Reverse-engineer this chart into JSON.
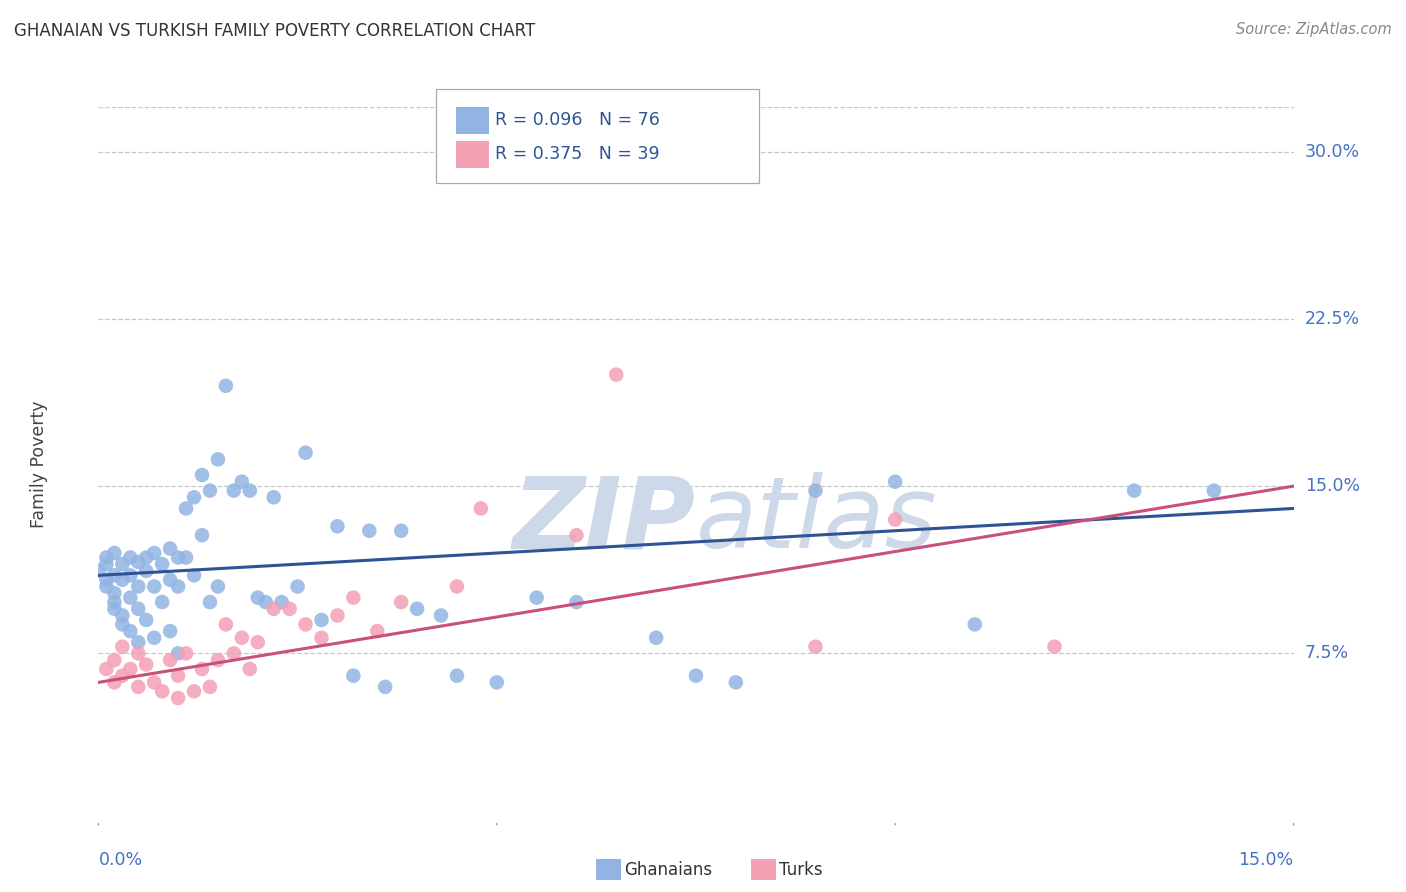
{
  "title": "GHANAIAN VS TURKISH FAMILY POVERTY CORRELATION CHART",
  "source": "Source: ZipAtlas.com",
  "ylabel": "Family Poverty",
  "ytick_labels": [
    "7.5%",
    "15.0%",
    "22.5%",
    "30.0%"
  ],
  "ytick_values": [
    0.075,
    0.15,
    0.225,
    0.3
  ],
  "xlim": [
    0.0,
    0.15
  ],
  "ylim": [
    0.0,
    0.32
  ],
  "ghanaian_color": "#92b4e3",
  "turkish_color": "#f4a0b5",
  "ghanaian_line_color": "#2f5496",
  "turkish_line_color": "#c9507a",
  "legend_text_color": "#2f5496",
  "axis_label_color": "#4472c4",
  "background_color": "#ffffff",
  "watermark_color": "#cdd8e8",
  "R_ghanaian": 0.096,
  "N_ghanaian": 76,
  "R_turkish": 0.375,
  "N_turkish": 39,
  "ghanaians_x": [
    0.0,
    0.001,
    0.001,
    0.001,
    0.001,
    0.002,
    0.002,
    0.002,
    0.002,
    0.002,
    0.003,
    0.003,
    0.003,
    0.003,
    0.004,
    0.004,
    0.004,
    0.004,
    0.005,
    0.005,
    0.005,
    0.005,
    0.006,
    0.006,
    0.006,
    0.007,
    0.007,
    0.007,
    0.008,
    0.008,
    0.009,
    0.009,
    0.009,
    0.01,
    0.01,
    0.01,
    0.011,
    0.011,
    0.012,
    0.012,
    0.013,
    0.013,
    0.014,
    0.014,
    0.015,
    0.015,
    0.016,
    0.017,
    0.018,
    0.019,
    0.02,
    0.021,
    0.022,
    0.023,
    0.025,
    0.026,
    0.028,
    0.03,
    0.032,
    0.034,
    0.036,
    0.038,
    0.04,
    0.043,
    0.045,
    0.05,
    0.055,
    0.06,
    0.07,
    0.075,
    0.08,
    0.09,
    0.1,
    0.11,
    0.13,
    0.14
  ],
  "ghanaians_y": [
    0.112,
    0.115,
    0.108,
    0.105,
    0.118,
    0.11,
    0.102,
    0.095,
    0.12,
    0.098,
    0.115,
    0.108,
    0.092,
    0.088,
    0.118,
    0.11,
    0.1,
    0.085,
    0.116,
    0.105,
    0.095,
    0.08,
    0.118,
    0.112,
    0.09,
    0.12,
    0.105,
    0.082,
    0.115,
    0.098,
    0.122,
    0.108,
    0.085,
    0.118,
    0.105,
    0.075,
    0.14,
    0.118,
    0.145,
    0.11,
    0.155,
    0.128,
    0.148,
    0.098,
    0.162,
    0.105,
    0.195,
    0.148,
    0.152,
    0.148,
    0.1,
    0.098,
    0.145,
    0.098,
    0.105,
    0.165,
    0.09,
    0.132,
    0.065,
    0.13,
    0.06,
    0.13,
    0.095,
    0.092,
    0.065,
    0.062,
    0.1,
    0.098,
    0.082,
    0.065,
    0.062,
    0.148,
    0.152,
    0.088,
    0.148,
    0.148
  ],
  "turks_x": [
    0.001,
    0.002,
    0.002,
    0.003,
    0.003,
    0.004,
    0.005,
    0.005,
    0.006,
    0.007,
    0.008,
    0.009,
    0.01,
    0.01,
    0.011,
    0.012,
    0.013,
    0.014,
    0.015,
    0.016,
    0.017,
    0.018,
    0.019,
    0.02,
    0.022,
    0.024,
    0.026,
    0.028,
    0.03,
    0.032,
    0.035,
    0.038,
    0.045,
    0.048,
    0.06,
    0.065,
    0.09,
    0.1,
    0.12
  ],
  "turks_y": [
    0.068,
    0.072,
    0.062,
    0.078,
    0.065,
    0.068,
    0.075,
    0.06,
    0.07,
    0.062,
    0.058,
    0.072,
    0.065,
    0.055,
    0.075,
    0.058,
    0.068,
    0.06,
    0.072,
    0.088,
    0.075,
    0.082,
    0.068,
    0.08,
    0.095,
    0.095,
    0.088,
    0.082,
    0.092,
    0.1,
    0.085,
    0.098,
    0.105,
    0.14,
    0.128,
    0.2,
    0.078,
    0.135,
    0.078
  ],
  "ghanaian_line_start_y": 0.11,
  "ghanaian_line_end_y": 0.14,
  "turkish_line_start_y": 0.062,
  "turkish_line_end_y": 0.15
}
